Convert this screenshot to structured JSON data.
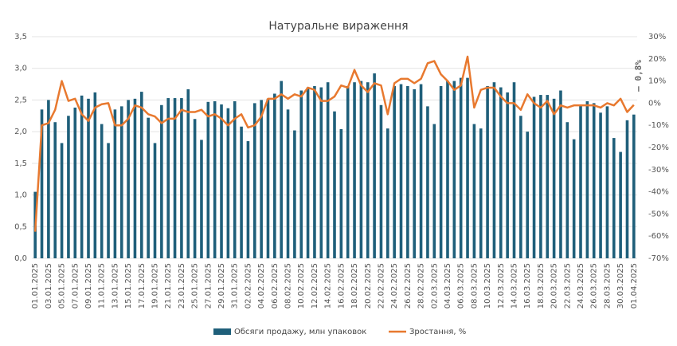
{
  "chart_data": {
    "type": "bar-line",
    "title": "Натуральне  вираження",
    "annotation": "– 0,8%",
    "categories": [
      "01.01.2025",
      null,
      "03.01.2025",
      null,
      "05.01.2025",
      null,
      "07.01.2025",
      null,
      "09.01.2025",
      null,
      "11.01.2025",
      null,
      "13.01.2025",
      null,
      "15.01.2025",
      null,
      "17.01.2025",
      null,
      "19.01.2025",
      null,
      "21.01.2025",
      null,
      "23.01.2025",
      null,
      "25.01.2025",
      null,
      "27.01.2025",
      null,
      "29.01.2025",
      null,
      "31.01.2025",
      null,
      "02.02.2025",
      null,
      "04.02.2025",
      null,
      "06.02.2025",
      null,
      "08.02.2025",
      null,
      "10.02.2025",
      null,
      "12.02.2025",
      null,
      "14.02.2025",
      null,
      "16.02.2025",
      null,
      "18.02.2025",
      null,
      "20.02.2025",
      null,
      "22.02.2025",
      null,
      "24.02.2025",
      null,
      "26.02.2025",
      null,
      "28.02.2025",
      null,
      "02.03.2025",
      null,
      "04.03.2025",
      null,
      "06.03.2025",
      null,
      "08.03.2025",
      null,
      "10.03.2025",
      null,
      "12.03.2025",
      null,
      "14.03.2025",
      null,
      "16.03.2025",
      null,
      "18.03.2025",
      null,
      "20.03.2025",
      null,
      "22.03.2025",
      null,
      "24.03.2025",
      null,
      "26.03.2025",
      null,
      "28.03.2025",
      null,
      "30.03.2025",
      null,
      "01.04.2025"
    ],
    "series": [
      {
        "name": "Обсяги продажу, млн упаковок",
        "color": "#1f5f7a",
        "kind": "bar",
        "values": [
          1.05,
          2.35,
          2.5,
          2.15,
          1.82,
          2.25,
          2.38,
          2.57,
          2.52,
          2.62,
          2.12,
          1.82,
          2.35,
          2.4,
          2.5,
          2.52,
          2.63,
          2.22,
          1.82,
          2.42,
          2.53,
          2.53,
          2.53,
          2.67,
          2.2,
          1.87,
          2.47,
          2.48,
          2.43,
          2.37,
          2.48,
          2.08,
          1.85,
          2.45,
          2.5,
          2.52,
          2.6,
          2.8,
          2.35,
          2.02,
          2.65,
          2.7,
          2.72,
          2.7,
          2.78,
          2.32,
          2.04,
          2.72,
          2.78,
          2.8,
          2.78,
          2.92,
          2.42,
          2.05,
          2.72,
          2.75,
          2.72,
          2.67,
          2.75,
          2.4,
          2.12,
          2.72,
          2.8,
          2.8,
          2.85,
          2.85,
          2.12,
          2.05,
          2.72,
          2.78,
          2.7,
          2.62,
          2.78,
          2.25,
          2.0,
          2.55,
          2.58,
          2.58,
          2.52,
          2.65,
          2.15,
          1.88,
          2.42,
          2.48,
          2.45,
          2.3,
          2.4,
          1.9,
          1.68,
          2.18,
          2.27
        ]
      },
      {
        "name": "Зростання, %",
        "color": "#e8792f",
        "kind": "line",
        "axis": "y2",
        "values": [
          -58,
          -10,
          -9,
          -3,
          10,
          1,
          2,
          -5,
          -8,
          -2,
          -0.5,
          0,
          -10,
          -10,
          -7,
          -1,
          -2,
          -5,
          -6,
          -9,
          -7,
          -7,
          -3,
          -4,
          -4,
          -3,
          -6,
          -5,
          -7,
          -10,
          -7,
          -5,
          -11,
          -10,
          -6,
          2,
          2,
          4,
          2,
          4,
          3,
          7,
          6,
          1,
          1,
          3,
          8,
          7,
          15,
          8,
          5,
          9,
          8,
          -5,
          9,
          11,
          11,
          9,
          11,
          18,
          19,
          13,
          10,
          6,
          8,
          21,
          -2,
          6,
          7,
          7,
          3,
          0,
          0,
          -3,
          4,
          0,
          -2,
          1,
          -5,
          -1,
          -2,
          -1,
          -1,
          -1,
          -1,
          -2,
          0,
          -1,
          2,
          -4,
          -0.8
        ]
      }
    ],
    "ylim": [
      0,
      3.5
    ],
    "yticks": [
      {
        "value": 0,
        "label": "0,0"
      },
      {
        "value": 0.5,
        "label": "0,5"
      },
      {
        "value": 1,
        "label": "1,0"
      },
      {
        "value": 1.5,
        "label": "1,5"
      },
      {
        "value": 2,
        "label": "2,0"
      },
      {
        "value": 2.5,
        "label": "2,5"
      },
      {
        "value": 3,
        "label": "3,0"
      },
      {
        "value": 3.5,
        "label": "3,5"
      }
    ],
    "y2lim": [
      -70,
      30
    ],
    "y2ticks": [
      {
        "value": -70,
        "label": "-70%"
      },
      {
        "value": -60,
        "label": "-60%"
      },
      {
        "value": -50,
        "label": "-50%"
      },
      {
        "value": -40,
        "label": "-40%"
      },
      {
        "value": -30,
        "label": "-30%"
      },
      {
        "value": -20,
        "label": "-20%"
      },
      {
        "value": -10,
        "label": "-10%"
      },
      {
        "value": 0,
        "label": "0%"
      },
      {
        "value": 10,
        "label": "10%"
      },
      {
        "value": 20,
        "label": "20%"
      },
      {
        "value": 30,
        "label": "30%"
      }
    ],
    "grid": true,
    "legend": "bottom"
  }
}
